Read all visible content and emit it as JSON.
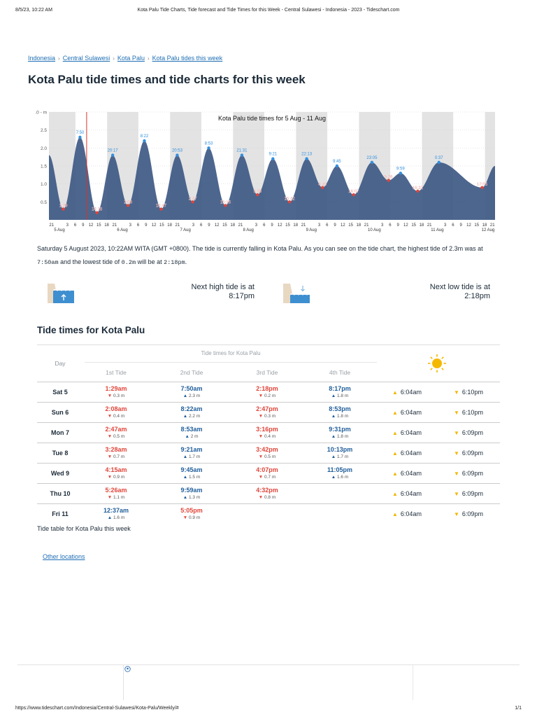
{
  "print_header": {
    "date": "8/5/23, 10:22 AM",
    "title": "Kota Palu Tide Charts, Tide forecast and Tide Times for this Week - Central Sulawesi - Indonesia - 2023 - Tideschart.com"
  },
  "print_footer": {
    "url": "https://www.tideschart.com/Indonesia/Central-Sulawesi/Kota-Palu/Weekly/#",
    "page": "1/1"
  },
  "breadcrumb": [
    "Indonesia",
    "Central Sulawesi",
    "Kota Palu",
    "Kota Palu tides this week"
  ],
  "page_title": "Kota Palu tide times and tide charts for this week",
  "chart_data": {
    "type": "area",
    "title": "Kota Palu tide times for 5 Aug - 11 Aug",
    "ylim": [
      0,
      3.0
    ],
    "y_ticks": [
      "0.5",
      "1.0",
      "1.5",
      "2.0",
      "2.5",
      "3.0 - m"
    ],
    "x_hour_ticks": [
      "21",
      "3",
      "6",
      "9",
      "12",
      "15",
      "18",
      "21",
      "3",
      "6",
      "9",
      "12",
      "15",
      "18",
      "21",
      "3",
      "6",
      "9",
      "12",
      "15",
      "18",
      "21",
      "3",
      "6",
      "9",
      "12",
      "15",
      "18",
      "21",
      "3",
      "6",
      "9",
      "12",
      "15",
      "18",
      "21",
      "3",
      "6",
      "9",
      "12",
      "15",
      "18",
      "21",
      "3",
      "6",
      "9",
      "12",
      "15",
      "18",
      "21",
      "3",
      "6",
      "9",
      "12",
      "15",
      "18",
      "21"
    ],
    "x_day_labels": [
      "5 Aug",
      "6 Aug",
      "7 Aug",
      "8 Aug",
      "9 Aug",
      "10 Aug",
      "11 Aug",
      "12 Aug"
    ],
    "now_marker": "10:22",
    "series": [
      {
        "points": [
          {
            "t": "1:29",
            "day": 0,
            "h": 0.3,
            "kind": "low"
          },
          {
            "t": "7:50",
            "day": 0,
            "h": 2.3,
            "kind": "high"
          },
          {
            "t": "14:18",
            "day": 0,
            "h": 0.2,
            "kind": "low"
          },
          {
            "t": "20:17",
            "day": 0,
            "h": 1.8,
            "kind": "high"
          },
          {
            "t": "2:08",
            "day": 1,
            "h": 0.4,
            "kind": "low"
          },
          {
            "t": "8:22",
            "day": 1,
            "h": 2.2,
            "kind": "high"
          },
          {
            "t": "14:47",
            "day": 1,
            "h": 0.3,
            "kind": "low"
          },
          {
            "t": "20:53",
            "day": 1,
            "h": 1.8,
            "kind": "high"
          },
          {
            "t": "2:47",
            "day": 2,
            "h": 0.5,
            "kind": "low"
          },
          {
            "t": "8:53",
            "day": 2,
            "h": 2.0,
            "kind": "high"
          },
          {
            "t": "15:16",
            "day": 2,
            "h": 0.4,
            "kind": "low"
          },
          {
            "t": "21:31",
            "day": 2,
            "h": 1.8,
            "kind": "high"
          },
          {
            "t": "3:28",
            "day": 3,
            "h": 0.7,
            "kind": "low"
          },
          {
            "t": "9:21",
            "day": 3,
            "h": 1.7,
            "kind": "high"
          },
          {
            "t": "15:42",
            "day": 3,
            "h": 0.5,
            "kind": "low"
          },
          {
            "t": "22:13",
            "day": 3,
            "h": 1.7,
            "kind": "high"
          },
          {
            "t": "4:15",
            "day": 4,
            "h": 0.9,
            "kind": "low"
          },
          {
            "t": "9:45",
            "day": 4,
            "h": 1.5,
            "kind": "high"
          },
          {
            "t": "16:07",
            "day": 4,
            "h": 0.7,
            "kind": "low"
          },
          {
            "t": "23:05",
            "day": 4,
            "h": 1.6,
            "kind": "high"
          },
          {
            "t": "5:26",
            "day": 5,
            "h": 1.1,
            "kind": "low"
          },
          {
            "t": "9:59",
            "day": 5,
            "h": 1.3,
            "kind": "high"
          },
          {
            "t": "16:32",
            "day": 5,
            "h": 0.8,
            "kind": "low"
          },
          {
            "t": "0:37",
            "day": 6,
            "h": 1.6,
            "kind": "high"
          },
          {
            "t": "17:05",
            "day": 6,
            "h": 0.9,
            "kind": "low"
          }
        ]
      }
    ]
  },
  "summary": {
    "text1": "Saturday 5 August 2023, 10:22AM WITA (GMT +0800). The tide is currently falling in Kota Palu. As you can see on the tide chart, the highest tide of 2.3m was at",
    "high_time": "7:50am",
    "text2": " and the lowest tide of ",
    "low_height": "0.2m",
    "text3": " will be at ",
    "low_time": "2:18pm",
    "text4": "."
  },
  "next_high": {
    "label": "Next high tide is at",
    "time": "8:17pm"
  },
  "next_low": {
    "label": "Next low tide is at",
    "time": "2:18pm"
  },
  "section_title": "Tide times for Kota Palu",
  "table": {
    "day_header": "Day",
    "group_header": "Tide times for Kota Palu",
    "col_headers": [
      "1st Tide",
      "2nd Tide",
      "3rd Tide",
      "4th Tide"
    ],
    "rows": [
      {
        "day": "Sat 5",
        "tides": [
          {
            "t": "1:29am",
            "h": "0.3 m",
            "k": "lo"
          },
          {
            "t": "7:50am",
            "h": "2.3 m",
            "k": "hi"
          },
          {
            "t": "2:18pm",
            "h": "0.2 m",
            "k": "lo"
          },
          {
            "t": "8:17pm",
            "h": "1.8 m",
            "k": "hi"
          }
        ],
        "sunrise": "6:04am",
        "sunset": "6:10pm"
      },
      {
        "day": "Sun 6",
        "tides": [
          {
            "t": "2:08am",
            "h": "0.4 m",
            "k": "lo"
          },
          {
            "t": "8:22am",
            "h": "2.2 m",
            "k": "hi"
          },
          {
            "t": "2:47pm",
            "h": "0.3 m",
            "k": "lo"
          },
          {
            "t": "8:53pm",
            "h": "1.8 m",
            "k": "hi"
          }
        ],
        "sunrise": "6:04am",
        "sunset": "6:10pm"
      },
      {
        "day": "Mon 7",
        "tides": [
          {
            "t": "2:47am",
            "h": "0.5 m",
            "k": "lo"
          },
          {
            "t": "8:53am",
            "h": "2 m",
            "k": "hi"
          },
          {
            "t": "3:16pm",
            "h": "0.4 m",
            "k": "lo"
          },
          {
            "t": "9:31pm",
            "h": "1.8 m",
            "k": "hi"
          }
        ],
        "sunrise": "6:04am",
        "sunset": "6:09pm"
      },
      {
        "day": "Tue 8",
        "tides": [
          {
            "t": "3:28am",
            "h": "0.7 m",
            "k": "lo"
          },
          {
            "t": "9:21am",
            "h": "1.7 m",
            "k": "hi"
          },
          {
            "t": "3:42pm",
            "h": "0.5 m",
            "k": "lo"
          },
          {
            "t": "10:13pm",
            "h": "1.7 m",
            "k": "hi"
          }
        ],
        "sunrise": "6:04am",
        "sunset": "6:09pm"
      },
      {
        "day": "Wed 9",
        "tides": [
          {
            "t": "4:15am",
            "h": "0.9 m",
            "k": "lo"
          },
          {
            "t": "9:45am",
            "h": "1.5 m",
            "k": "hi"
          },
          {
            "t": "4:07pm",
            "h": "0.7 m",
            "k": "lo"
          },
          {
            "t": "11:05pm",
            "h": "1.6 m",
            "k": "hi"
          }
        ],
        "sunrise": "6:04am",
        "sunset": "6:09pm"
      },
      {
        "day": "Thu 10",
        "tides": [
          {
            "t": "5:26am",
            "h": "1.1 m",
            "k": "lo"
          },
          {
            "t": "9:59am",
            "h": "1.3 m",
            "k": "hi"
          },
          {
            "t": "4:32pm",
            "h": "0.8 m",
            "k": "lo"
          }
        ],
        "sunrise": "6:04am",
        "sunset": "6:09pm"
      },
      {
        "day": "Fri 11",
        "tides": [
          {
            "t": "12:37am",
            "h": "1.6 m",
            "k": "hi"
          },
          {
            "t": "5:05pm",
            "h": "0.9 m",
            "k": "lo"
          }
        ],
        "sunrise": "6:04am",
        "sunset": "6:09pm"
      }
    ]
  },
  "table_caption": "Tide table for Kota Palu this week",
  "other_locations": "Other locations",
  "icons": {
    "sun": "sun-icon",
    "sunrise": "sunrise-arrow-icon",
    "sunset": "sunset-arrow-icon",
    "high_tide": "high-tide-icon",
    "low_tide": "low-tide-icon",
    "location_pin": "location-pin-icon"
  },
  "colors": {
    "link": "#1f6fb5",
    "low": "#e0453a",
    "high": "#1f5d9a",
    "area": "#3f5a85",
    "sun": "#f2b600"
  }
}
